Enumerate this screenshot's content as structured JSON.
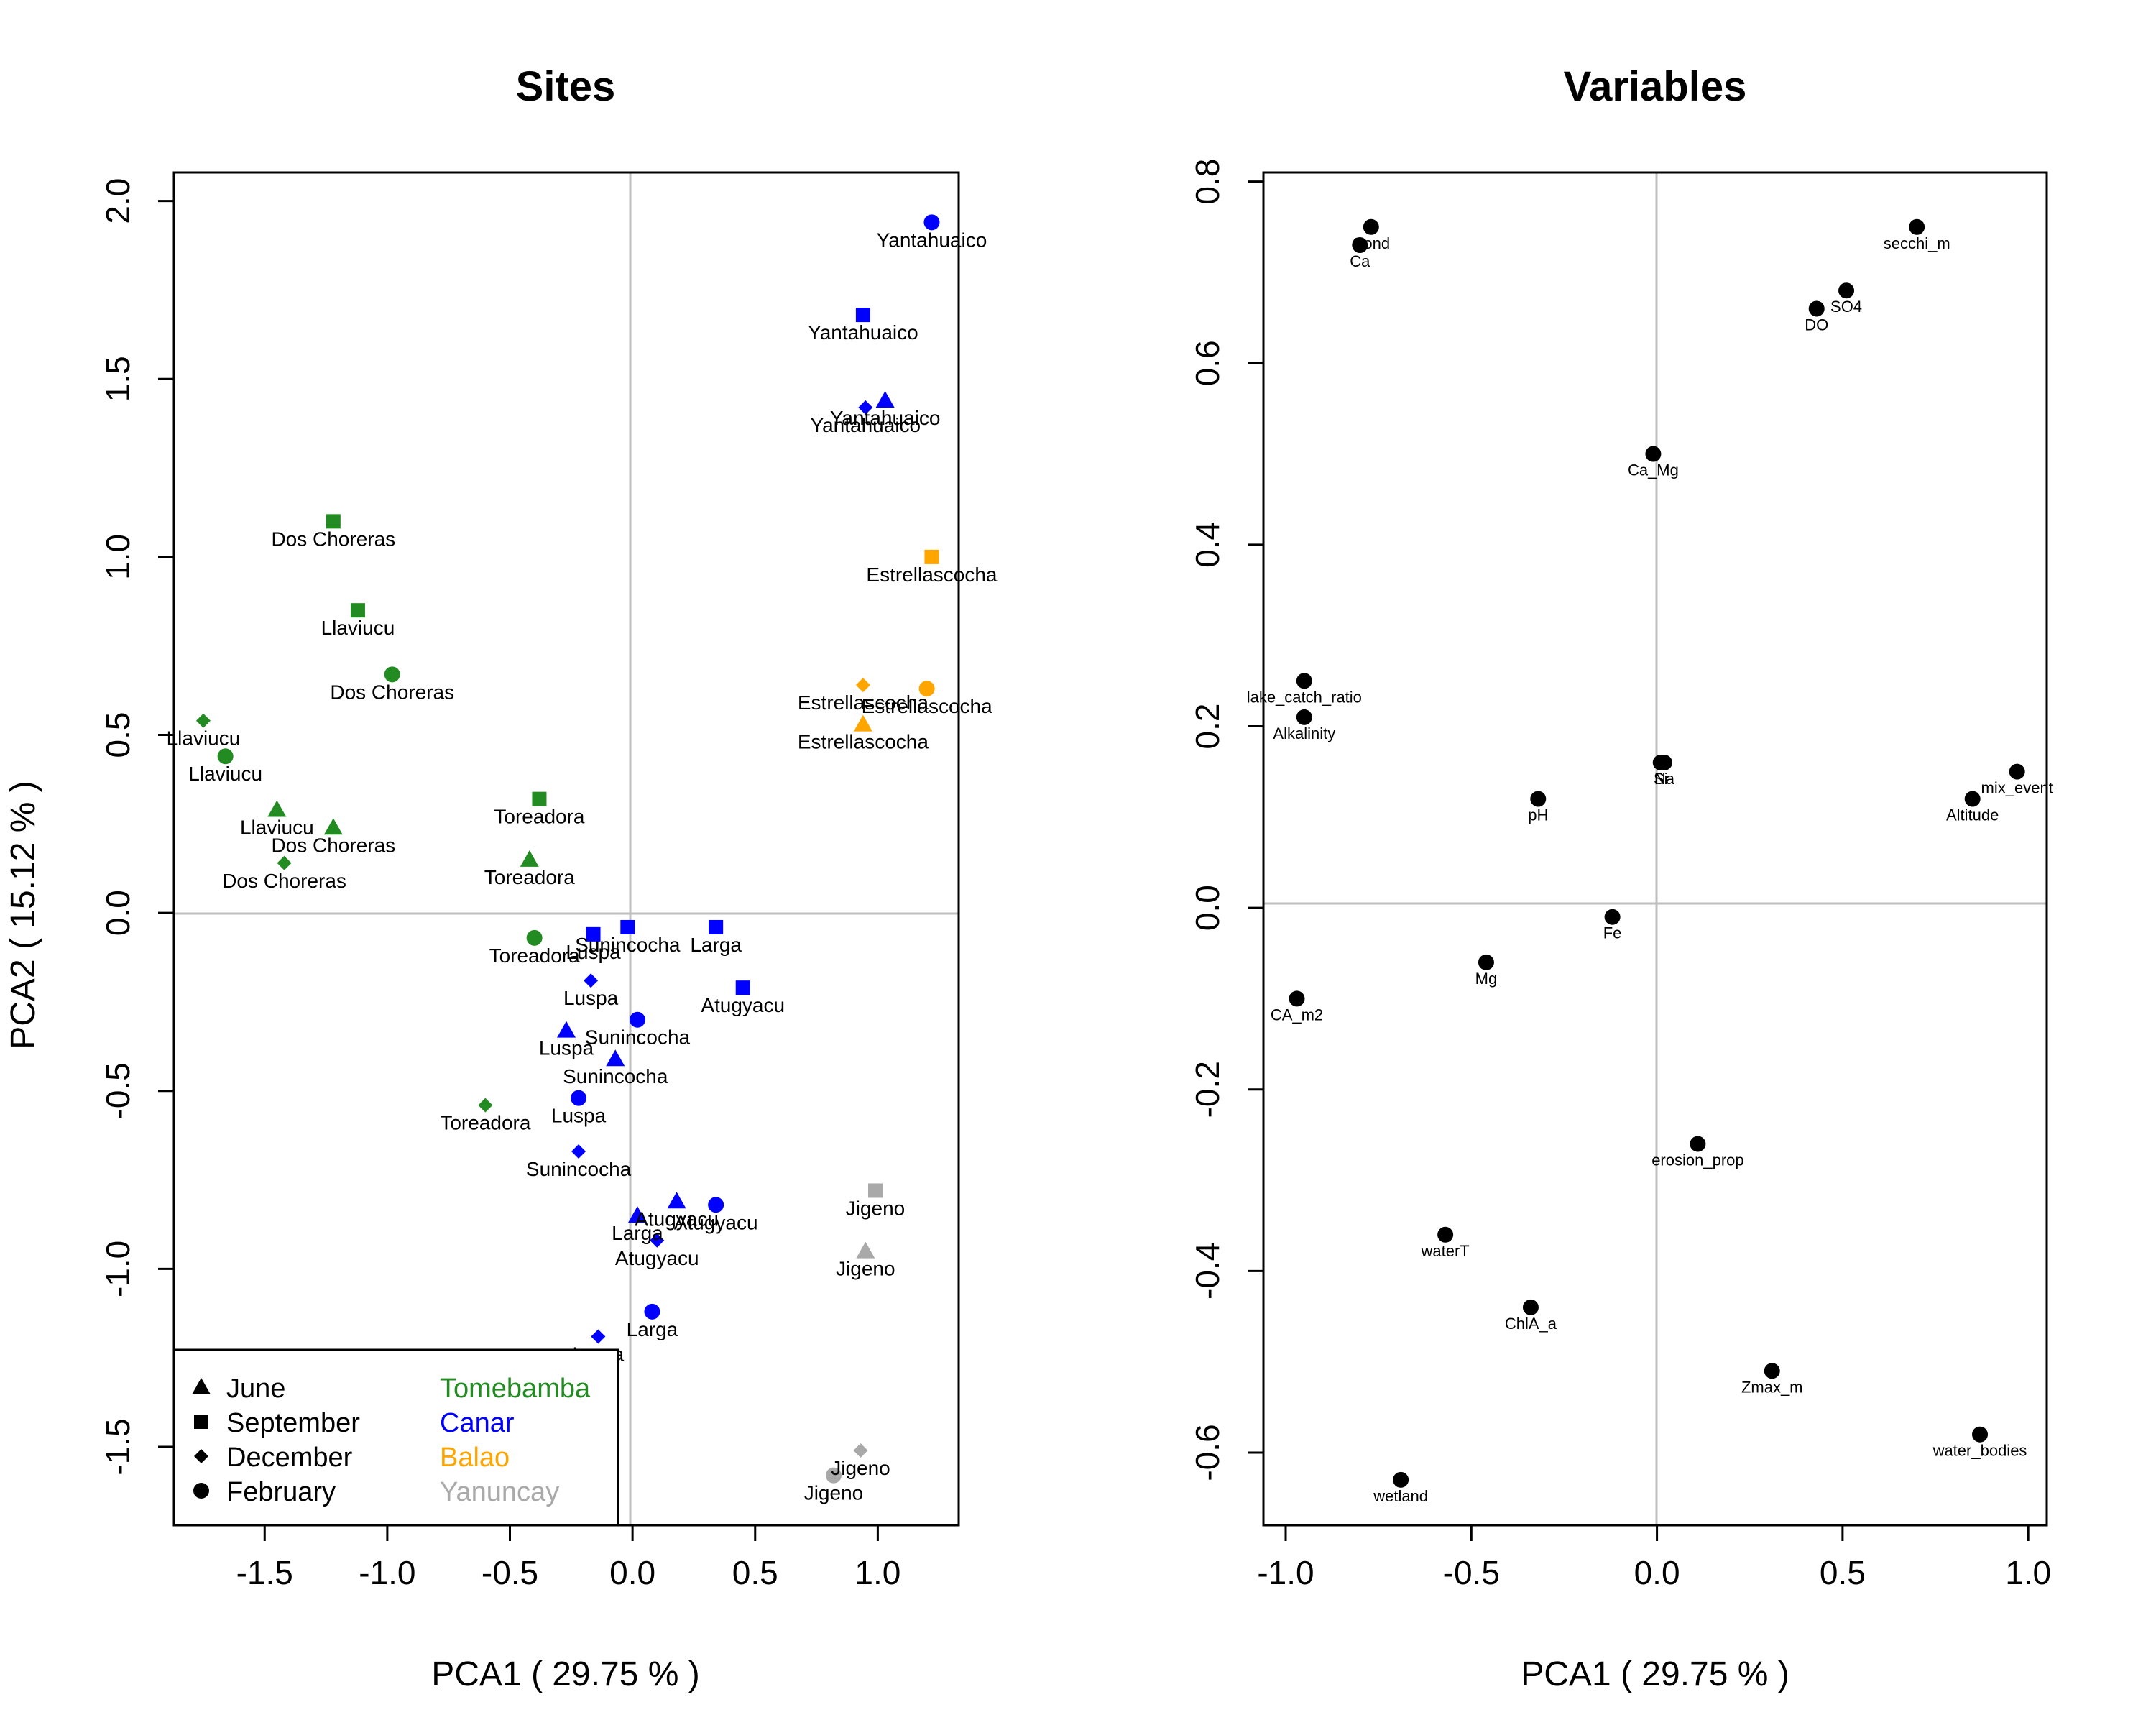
{
  "chart_data": [
    {
      "type": "scatter",
      "title": "Sites",
      "xlabel": "PCA1 ( 29.75 % )",
      "ylabel": "PCA2 ( 15.12 % )",
      "xlim": [
        -1.87,
        1.33
      ],
      "ylim": [
        -1.72,
        2.08
      ],
      "xticks": [
        "-1.5",
        "-1.0",
        "-0.5",
        "0.0",
        "0.5",
        "1.0"
      ],
      "xtick_values": [
        -1.5,
        -1.0,
        -0.5,
        0.0,
        0.5,
        1.0
      ],
      "yticks": [
        "-1.5",
        "-1.0",
        "-0.5",
        "0.0",
        "0.5",
        "1.0",
        "1.5",
        "2.0"
      ],
      "ytick_values": [
        -1.5,
        -1.0,
        -0.5,
        0.0,
        0.5,
        1.0,
        1.5,
        2.0
      ],
      "reference_lines": {
        "x": 0,
        "y": 0
      },
      "grid": false,
      "legend": {
        "placement": "bottom-left",
        "shapes": [
          {
            "label": "June",
            "shape": "triangle"
          },
          {
            "label": "September",
            "shape": "square"
          },
          {
            "label": "December",
            "shape": "diamond"
          },
          {
            "label": "February",
            "shape": "circle"
          }
        ],
        "groups": [
          {
            "label": "Tomebamba",
            "color": "#228B22"
          },
          {
            "label": "Canar",
            "color": "#0000FF"
          },
          {
            "label": "Balao",
            "color": "#FFA500"
          },
          {
            "label": "Yanuncay",
            "color": "#A9A9A9"
          }
        ]
      },
      "points": [
        {
          "x": 1.22,
          "y": 1.94,
          "group": "Canar",
          "shape": "circle",
          "label": "Yantahuaico"
        },
        {
          "x": 0.94,
          "y": 1.68,
          "group": "Canar",
          "shape": "square",
          "label": "Yantahuaico"
        },
        {
          "x": 1.03,
          "y": 1.44,
          "group": "Canar",
          "shape": "triangle",
          "label": "Yantahuaico"
        },
        {
          "x": 0.95,
          "y": 1.42,
          "group": "Canar",
          "shape": "diamond",
          "label": "Yantahuaico"
        },
        {
          "x": 1.22,
          "y": 1.0,
          "group": "Balao",
          "shape": "square",
          "label": "Estrellascocha"
        },
        {
          "x": 1.2,
          "y": 0.63,
          "group": "Balao",
          "shape": "circle",
          "label": "Estrellascocha"
        },
        {
          "x": 0.94,
          "y": 0.64,
          "group": "Balao",
          "shape": "diamond",
          "label": "Estrellascocha"
        },
        {
          "x": 0.94,
          "y": 0.53,
          "group": "Balao",
          "shape": "triangle",
          "label": "Estrellascocha"
        },
        {
          "x": -1.22,
          "y": 1.1,
          "group": "Tomebamba",
          "shape": "square",
          "label": "Dos Choreras"
        },
        {
          "x": -1.12,
          "y": 0.85,
          "group": "Tomebamba",
          "shape": "square",
          "label": "Llaviucu"
        },
        {
          "x": -0.98,
          "y": 0.67,
          "group": "Tomebamba",
          "shape": "circle",
          "label": "Dos Choreras"
        },
        {
          "x": -1.75,
          "y": 0.54,
          "group": "Tomebamba",
          "shape": "diamond",
          "label": "Llaviucu"
        },
        {
          "x": -1.66,
          "y": 0.44,
          "group": "Tomebamba",
          "shape": "circle",
          "label": "Llaviucu"
        },
        {
          "x": -1.45,
          "y": 0.29,
          "group": "Tomebamba",
          "shape": "triangle",
          "label": "Llaviucu"
        },
        {
          "x": -1.22,
          "y": 0.24,
          "group": "Tomebamba",
          "shape": "triangle",
          "label": "Dos Choreras"
        },
        {
          "x": -1.42,
          "y": 0.14,
          "group": "Tomebamba",
          "shape": "diamond",
          "label": "Dos Choreras"
        },
        {
          "x": -0.38,
          "y": 0.32,
          "group": "Tomebamba",
          "shape": "square",
          "label": "Toreadora"
        },
        {
          "x": -0.42,
          "y": 0.15,
          "group": "Tomebamba",
          "shape": "triangle",
          "label": "Toreadora"
        },
        {
          "x": -0.4,
          "y": -0.07,
          "group": "Tomebamba",
          "shape": "circle",
          "label": "Toreadora"
        },
        {
          "x": -0.6,
          "y": -0.54,
          "group": "Tomebamba",
          "shape": "diamond",
          "label": "Toreadora"
        },
        {
          "x": -0.16,
          "y": -0.06,
          "group": "Canar",
          "shape": "square",
          "label": "Luspa"
        },
        {
          "x": -0.02,
          "y": -0.04,
          "group": "Canar",
          "shape": "square",
          "label": "Sunincocha"
        },
        {
          "x": 0.34,
          "y": -0.04,
          "group": "Canar",
          "shape": "square",
          "label": "Larga"
        },
        {
          "x": 0.45,
          "y": -0.21,
          "group": "Canar",
          "shape": "square",
          "label": "Atugyacu"
        },
        {
          "x": -0.17,
          "y": -0.19,
          "group": "Canar",
          "shape": "diamond",
          "label": "Luspa"
        },
        {
          "x": 0.02,
          "y": -0.3,
          "group": "Canar",
          "shape": "circle",
          "label": "Sunincocha"
        },
        {
          "x": -0.27,
          "y": -0.33,
          "group": "Canar",
          "shape": "triangle",
          "label": "Luspa"
        },
        {
          "x": -0.07,
          "y": -0.41,
          "group": "Canar",
          "shape": "triangle",
          "label": "Sunincocha"
        },
        {
          "x": -0.22,
          "y": -0.52,
          "group": "Canar",
          "shape": "circle",
          "label": "Luspa"
        },
        {
          "x": -0.22,
          "y": -0.67,
          "group": "Canar",
          "shape": "diamond",
          "label": "Sunincocha"
        },
        {
          "x": 0.18,
          "y": -0.81,
          "group": "Canar",
          "shape": "triangle",
          "label": "Atugyacu"
        },
        {
          "x": 0.34,
          "y": -0.82,
          "group": "Canar",
          "shape": "circle",
          "label": "Atugyacu"
        },
        {
          "x": 0.02,
          "y": -0.85,
          "group": "Canar",
          "shape": "triangle",
          "label": "Larga"
        },
        {
          "x": 0.1,
          "y": -0.92,
          "group": "Canar",
          "shape": "diamond",
          "label": "Atugyacu"
        },
        {
          "x": 0.08,
          "y": -1.12,
          "group": "Canar",
          "shape": "circle",
          "label": "Larga"
        },
        {
          "x": -0.14,
          "y": -1.19,
          "group": "Canar",
          "shape": "diamond",
          "label": "Larga"
        },
        {
          "x": 0.99,
          "y": -0.78,
          "group": "Yanuncay",
          "shape": "square",
          "label": "Jigeno"
        },
        {
          "x": 0.95,
          "y": -0.95,
          "group": "Yanuncay",
          "shape": "triangle",
          "label": "Jigeno"
        },
        {
          "x": 0.93,
          "y": -1.51,
          "group": "Yanuncay",
          "shape": "diamond",
          "label": "Jigeno"
        },
        {
          "x": 0.82,
          "y": -1.58,
          "group": "Yanuncay",
          "shape": "circle",
          "label": "Jigeno"
        }
      ]
    },
    {
      "type": "scatter",
      "title": "Variables",
      "xlabel": "PCA1 ( 29.75 % )",
      "ylabel": "",
      "xlim": [
        -1.06,
        1.05
      ],
      "ylim": [
        -0.68,
        0.81
      ],
      "xticks": [
        "-1.0",
        "-0.5",
        "0.0",
        "0.5",
        "1.0"
      ],
      "xtick_values": [
        -1.0,
        -0.5,
        0.0,
        0.5,
        1.0
      ],
      "yticks": [
        "-0.6",
        "-0.4",
        "-0.2",
        "0.0",
        "0.2",
        "0.4",
        "0.6",
        "0.8"
      ],
      "ytick_values": [
        -0.6,
        -0.4,
        -0.2,
        0.0,
        0.2,
        0.4,
        0.6,
        0.8
      ],
      "reference_lines": {
        "x": 0,
        "y": 0
      },
      "grid": false,
      "point_color": "#000000",
      "points": [
        {
          "x": -0.77,
          "y": 0.75,
          "label": "Cond"
        },
        {
          "x": -0.8,
          "y": 0.73,
          "label": "Ca"
        },
        {
          "x": 0.7,
          "y": 0.75,
          "label": "secchi_m"
        },
        {
          "x": 0.51,
          "y": 0.68,
          "label": "SO4"
        },
        {
          "x": 0.43,
          "y": 0.66,
          "label": "DO"
        },
        {
          "x": -0.01,
          "y": 0.5,
          "label": "Ca_Mg"
        },
        {
          "x": -0.95,
          "y": 0.25,
          "label": "lake_catch_ratio"
        },
        {
          "x": -0.95,
          "y": 0.21,
          "label": "Alkalinity"
        },
        {
          "x": 0.01,
          "y": 0.16,
          "label": "Si"
        },
        {
          "x": 0.02,
          "y": 0.16,
          "label": "Na"
        },
        {
          "x": -0.32,
          "y": 0.12,
          "label": "pH"
        },
        {
          "x": 0.97,
          "y": 0.15,
          "label": "mix_event"
        },
        {
          "x": 0.85,
          "y": 0.12,
          "label": "Altitude"
        },
        {
          "x": -0.12,
          "y": -0.01,
          "label": "Fe"
        },
        {
          "x": -0.46,
          "y": -0.06,
          "label": "Mg"
        },
        {
          "x": -0.97,
          "y": -0.1,
          "label": "CA_m2"
        },
        {
          "x": 0.11,
          "y": -0.26,
          "label": "erosion_prop"
        },
        {
          "x": -0.57,
          "y": -0.36,
          "label": "waterT"
        },
        {
          "x": -0.34,
          "y": -0.44,
          "label": "ChlA_a"
        },
        {
          "x": 0.31,
          "y": -0.51,
          "label": "Zmax_m"
        },
        {
          "x": 0.87,
          "y": -0.58,
          "label": "water_bodies"
        },
        {
          "x": -0.69,
          "y": -0.63,
          "label": "wetland"
        }
      ]
    }
  ]
}
